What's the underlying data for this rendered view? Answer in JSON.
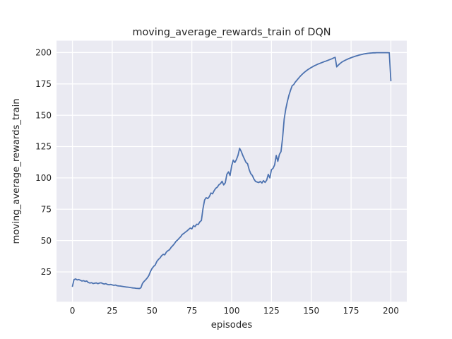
{
  "figure": {
    "title": "moving_average_rewards_train of DQN",
    "xlabel": "episodes",
    "ylabel": "moving_average_rewards_train"
  },
  "chart_data": {
    "type": "line",
    "title": "moving_average_rewards_train of DQN",
    "xlabel": "episodes",
    "ylabel": "moving_average_rewards_train",
    "style": "seaborn-darkgrid",
    "grid": true,
    "legend_position": "none",
    "xlim": [
      -10,
      210
    ],
    "ylim": [
      1.2,
      209.5
    ],
    "x_ticks": [
      0,
      25,
      50,
      75,
      100,
      125,
      150,
      175,
      200
    ],
    "y_ticks": [
      25,
      50,
      75,
      100,
      125,
      150,
      175,
      200
    ],
    "colors": {
      "line": "#4c72b0",
      "plot_bg": "#eaeaf2",
      "grid": "#ffffff",
      "text": "#262626",
      "figure_bg": "#ffffff"
    },
    "series": [
      {
        "name": "moving_average_rewards_train",
        "points": [
          [
            0,
            13.5
          ],
          [
            1,
            18.8
          ],
          [
            2,
            19.4
          ],
          [
            3,
            18.6
          ],
          [
            4,
            18.9
          ],
          [
            5,
            18.3
          ],
          [
            6,
            17.7
          ],
          [
            7,
            18.0
          ],
          [
            8,
            17.4
          ],
          [
            9,
            17.7
          ],
          [
            10,
            16.5
          ],
          [
            11,
            16.1
          ],
          [
            12,
            16.4
          ],
          [
            13,
            15.7
          ],
          [
            14,
            16.0
          ],
          [
            15,
            16.2
          ],
          [
            16,
            15.6
          ],
          [
            17,
            16.1
          ],
          [
            18,
            16.3
          ],
          [
            19,
            15.7
          ],
          [
            20,
            15.3
          ],
          [
            21,
            15.6
          ],
          [
            22,
            15.0
          ],
          [
            23,
            14.7
          ],
          [
            24,
            15.0
          ],
          [
            25,
            14.6
          ],
          [
            26,
            14.3
          ],
          [
            27,
            14.5
          ],
          [
            28,
            14.0
          ],
          [
            29,
            13.8
          ],
          [
            30,
            13.7
          ],
          [
            31,
            13.5
          ],
          [
            32,
            13.3
          ],
          [
            33,
            13.1
          ],
          [
            34,
            12.9
          ],
          [
            35,
            12.8
          ],
          [
            36,
            12.6
          ],
          [
            37,
            12.4
          ],
          [
            38,
            12.2
          ],
          [
            39,
            12.1
          ],
          [
            40,
            11.9
          ],
          [
            41,
            11.8
          ],
          [
            42,
            11.7
          ],
          [
            43,
            12.3
          ],
          [
            44,
            15.8
          ],
          [
            45,
            17.4
          ],
          [
            46,
            18.7
          ],
          [
            47,
            20.2
          ],
          [
            48,
            22.1
          ],
          [
            49,
            25.3
          ],
          [
            50,
            27.7
          ],
          [
            51,
            29.4
          ],
          [
            52,
            30.5
          ],
          [
            53,
            33.3
          ],
          [
            54,
            34.9
          ],
          [
            55,
            36.1
          ],
          [
            56,
            37.9
          ],
          [
            57,
            39.0
          ],
          [
            58,
            38.6
          ],
          [
            59,
            40.8
          ],
          [
            60,
            41.9
          ],
          [
            61,
            42.7
          ],
          [
            62,
            44.6
          ],
          [
            63,
            45.9
          ],
          [
            64,
            47.4
          ],
          [
            65,
            49.3
          ],
          [
            66,
            50.4
          ],
          [
            67,
            51.8
          ],
          [
            68,
            53.1
          ],
          [
            69,
            54.9
          ],
          [
            70,
            55.7
          ],
          [
            71,
            56.8
          ],
          [
            72,
            57.7
          ],
          [
            73,
            58.9
          ],
          [
            74,
            60.0
          ],
          [
            75,
            59.3
          ],
          [
            76,
            61.9
          ],
          [
            77,
            61.1
          ],
          [
            78,
            63.0
          ],
          [
            79,
            62.8
          ],
          [
            80,
            64.9
          ],
          [
            81,
            66.0
          ],
          [
            82,
            75.5
          ],
          [
            83,
            82.3
          ],
          [
            84,
            84.2
          ],
          [
            85,
            83.5
          ],
          [
            86,
            85.1
          ],
          [
            87,
            87.9
          ],
          [
            88,
            87.3
          ],
          [
            89,
            89.8
          ],
          [
            90,
            91.7
          ],
          [
            91,
            92.6
          ],
          [
            92,
            94.5
          ],
          [
            93,
            95.4
          ],
          [
            94,
            97.3
          ],
          [
            95,
            94.4
          ],
          [
            96,
            96.1
          ],
          [
            97,
            102.9
          ],
          [
            98,
            104.8
          ],
          [
            99,
            101.9
          ],
          [
            100,
            109.5
          ],
          [
            101,
            114.2
          ],
          [
            102,
            112.3
          ],
          [
            103,
            114.6
          ],
          [
            104,
            118.1
          ],
          [
            105,
            123.6
          ],
          [
            106,
            121.2
          ],
          [
            107,
            117.9
          ],
          [
            108,
            115.1
          ],
          [
            109,
            112.4
          ],
          [
            110,
            111.3
          ],
          [
            111,
            106.6
          ],
          [
            112,
            103.4
          ],
          [
            113,
            101.9
          ],
          [
            114,
            99.1
          ],
          [
            115,
            97.2
          ],
          [
            116,
            96.7
          ],
          [
            117,
            96.3
          ],
          [
            118,
            97.2
          ],
          [
            119,
            95.9
          ],
          [
            120,
            97.8
          ],
          [
            121,
            96.4
          ],
          [
            122,
            98.2
          ],
          [
            123,
            102.8
          ],
          [
            124,
            100.0
          ],
          [
            125,
            106.6
          ],
          [
            126,
            107.6
          ],
          [
            127,
            110.4
          ],
          [
            128,
            117.9
          ],
          [
            129,
            113.2
          ],
          [
            130,
            118.8
          ],
          [
            131,
            121.0
          ],
          [
            132,
            132.0
          ],
          [
            133,
            147.0
          ],
          [
            134,
            155.0
          ],
          [
            135,
            161.0
          ],
          [
            136,
            166.0
          ],
          [
            137,
            170.0
          ],
          [
            138,
            173.5
          ],
          [
            139,
            174.5
          ],
          [
            140,
            176.5
          ],
          [
            141,
            178.0
          ],
          [
            142,
            179.5
          ],
          [
            143,
            181.0
          ],
          [
            144,
            182.3
          ],
          [
            145,
            183.5
          ],
          [
            146,
            184.6
          ],
          [
            147,
            185.6
          ],
          [
            148,
            186.5
          ],
          [
            149,
            187.3
          ],
          [
            150,
            188.1
          ],
          [
            151,
            188.8
          ],
          [
            152,
            189.5
          ],
          [
            153,
            190.1
          ],
          [
            154,
            190.7
          ],
          [
            155,
            191.2
          ],
          [
            156,
            191.7
          ],
          [
            157,
            192.2
          ],
          [
            158,
            192.7
          ],
          [
            159,
            193.1
          ],
          [
            160,
            193.6
          ],
          [
            161,
            194.1
          ],
          [
            162,
            194.6
          ],
          [
            163,
            195.1
          ],
          [
            164,
            195.7
          ],
          [
            165,
            196.2
          ],
          [
            166,
            188.6
          ],
          [
            167,
            190.0
          ],
          [
            168,
            191.2
          ],
          [
            169,
            192.2
          ],
          [
            170,
            193.0
          ],
          [
            171,
            193.7
          ],
          [
            172,
            194.3
          ],
          [
            173,
            194.9
          ],
          [
            174,
            195.4
          ],
          [
            175,
            195.9
          ],
          [
            176,
            196.4
          ],
          [
            177,
            196.8
          ],
          [
            178,
            197.2
          ],
          [
            179,
            197.6
          ],
          [
            180,
            198.0
          ],
          [
            181,
            198.3
          ],
          [
            182,
            198.6
          ],
          [
            183,
            198.9
          ],
          [
            184,
            199.1
          ],
          [
            185,
            199.3
          ],
          [
            186,
            199.5
          ],
          [
            187,
            199.6
          ],
          [
            188,
            199.7
          ],
          [
            189,
            199.8
          ],
          [
            190,
            199.8
          ],
          [
            191,
            199.9
          ],
          [
            192,
            199.9
          ],
          [
            193,
            199.9
          ],
          [
            194,
            199.9
          ],
          [
            195,
            199.9
          ],
          [
            196,
            199.9
          ],
          [
            197,
            199.9
          ],
          [
            198,
            199.9
          ],
          [
            199,
            199.8
          ],
          [
            200,
            177.5
          ]
        ]
      }
    ]
  }
}
